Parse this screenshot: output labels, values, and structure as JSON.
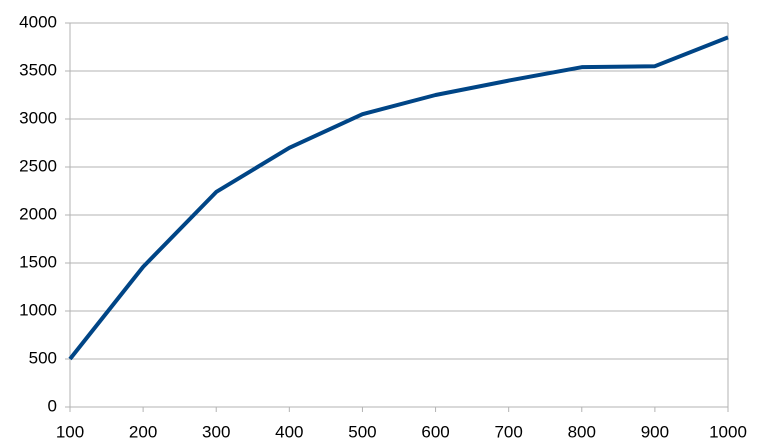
{
  "chart_data": {
    "type": "line",
    "x": [
      100,
      200,
      300,
      400,
      500,
      600,
      700,
      800,
      900,
      1000
    ],
    "series": [
      {
        "color": "#004586",
        "values": [
          500,
          1460,
          2240,
          2700,
          3050,
          3250,
          3400,
          3540,
          3550,
          3850
        ]
      }
    ],
    "xlim": [
      100,
      1000
    ],
    "xticks": [
      100,
      200,
      300,
      400,
      500,
      600,
      700,
      800,
      900,
      1000
    ],
    "ylim": [
      0,
      4000
    ],
    "yticks": [
      0,
      500,
      1000,
      1500,
      2000,
      2500,
      3000,
      3500,
      4000
    ],
    "grid": true
  }
}
